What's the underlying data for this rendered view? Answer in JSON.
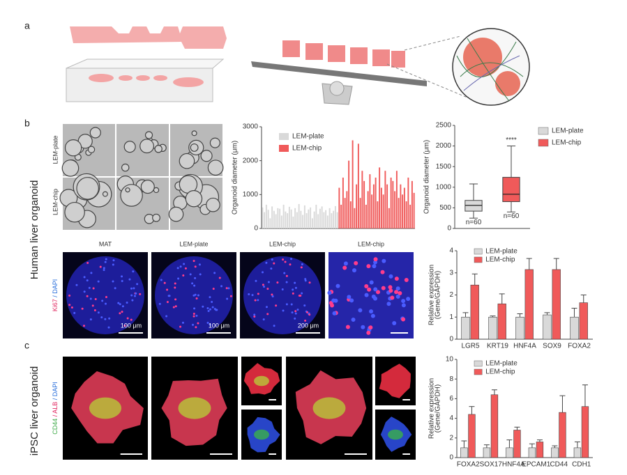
{
  "panels": {
    "a": "a",
    "b": "b",
    "c": "c"
  },
  "side_labels": {
    "human": "Human liver organoid",
    "ipsc": "iPSC liver organoid"
  },
  "micrograph_rows": [
    "LEM-plate",
    "LEM-chip"
  ],
  "fluorescence": {
    "columns": [
      "MAT",
      "LEM-plate",
      "LEM-chip",
      "LEM-chip"
    ],
    "stain_b": {
      "ki67": "Ki67",
      "dapi": "/ DAPI"
    },
    "scale_bars": [
      "100 μm",
      "100 μm",
      "200 μm"
    ],
    "stain_c": {
      "cd44": "CD44",
      "alb": "/ ALB",
      "dapi": "/ DAPI"
    }
  },
  "chart_data": [
    {
      "type": "bar",
      "ylabel": "Organoid diameter (μm)",
      "ylim": [
        0,
        3000
      ],
      "yticks": [
        0,
        1000,
        2000,
        3000
      ],
      "series": [
        {
          "name": "LEM-plate",
          "color": "#d9d9d9",
          "values": [
            620,
            480,
            700,
            550,
            300,
            650,
            520,
            420,
            600,
            580,
            380,
            700,
            500,
            450,
            640,
            560,
            350,
            600,
            480,
            720,
            520,
            400,
            680,
            450,
            560,
            620,
            300,
            500,
            700,
            420,
            580,
            650,
            480,
            540,
            380,
            600,
            450,
            520,
            660,
            480
          ]
        },
        {
          "name": "LEM-chip",
          "color": "#f05a5a",
          "values": [
            1200,
            700,
            1500,
            900,
            1100,
            2000,
            800,
            2600,
            600,
            1300,
            2500,
            900,
            1700,
            1400,
            700,
            1100,
            1600,
            1000,
            1300,
            1500,
            800,
            1800,
            1200,
            1000,
            1700,
            1300,
            600,
            1500,
            1400,
            1100,
            1700,
            900,
            1300,
            1000,
            1200,
            800,
            1500,
            700,
            1400,
            1050
          ]
        }
      ]
    },
    {
      "type": "box",
      "ylabel": "Organoid diameter (μm)",
      "ylim": [
        0,
        2500
      ],
      "yticks": [
        0,
        500,
        1000,
        1500,
        2000,
        2500
      ],
      "significance": "****",
      "series": [
        {
          "name": "LEM-plate",
          "color": "#d9d9d9",
          "min": 250,
          "q1": 420,
          "median": 560,
          "q3": 680,
          "max": 1080,
          "annotation": "n=60"
        },
        {
          "name": "LEM-chip",
          "color": "#f05a5a",
          "min": 400,
          "q1": 650,
          "median": 830,
          "q3": 1240,
          "max": 2000,
          "annotation": "n=60"
        }
      ]
    },
    {
      "type": "bar",
      "ylabel": [
        "Relative expression",
        "(Gene/GAPDH)"
      ],
      "ylim": [
        0,
        4
      ],
      "yticks": [
        0,
        1,
        2,
        3,
        4
      ],
      "categories": [
        "LGR5",
        "KRT19",
        "HNF4A",
        "SOX9",
        "FOXA2"
      ],
      "series": [
        {
          "name": "LEM-plate",
          "color": "#d9d9d9",
          "values": [
            1,
            1,
            1,
            1.1,
            1
          ],
          "errors": [
            0.2,
            0.05,
            0.15,
            0.1,
            0.4
          ]
        },
        {
          "name": "LEM-chip",
          "color": "#f05a5a",
          "values": [
            2.45,
            1.6,
            3.15,
            3.15,
            1.65
          ],
          "errors": [
            0.5,
            0.45,
            0.5,
            0.5,
            0.35
          ]
        }
      ]
    },
    {
      "type": "bar",
      "ylabel": [
        "Relative expression",
        "(Gene/GAPDH)"
      ],
      "ylim": [
        0,
        10
      ],
      "yticks": [
        0,
        2,
        4,
        6,
        8,
        10
      ],
      "categories": [
        "FOXA2",
        "SOX17",
        "HNF4A",
        "EPCAM1",
        "CD44",
        "CDH1"
      ],
      "series": [
        {
          "name": "LEM-plate",
          "color": "#d9d9d9",
          "values": [
            1,
            1,
            1,
            1,
            1,
            1
          ],
          "errors": [
            0.7,
            0.3,
            0.8,
            0.4,
            0.2,
            0.6
          ]
        },
        {
          "name": "LEM-chip",
          "color": "#f05a5a",
          "values": [
            4.4,
            6.4,
            2.8,
            1.6,
            4.6,
            5.2
          ],
          "errors": [
            0.8,
            0.5,
            0.3,
            0.2,
            1.7,
            2.2
          ]
        }
      ]
    }
  ]
}
